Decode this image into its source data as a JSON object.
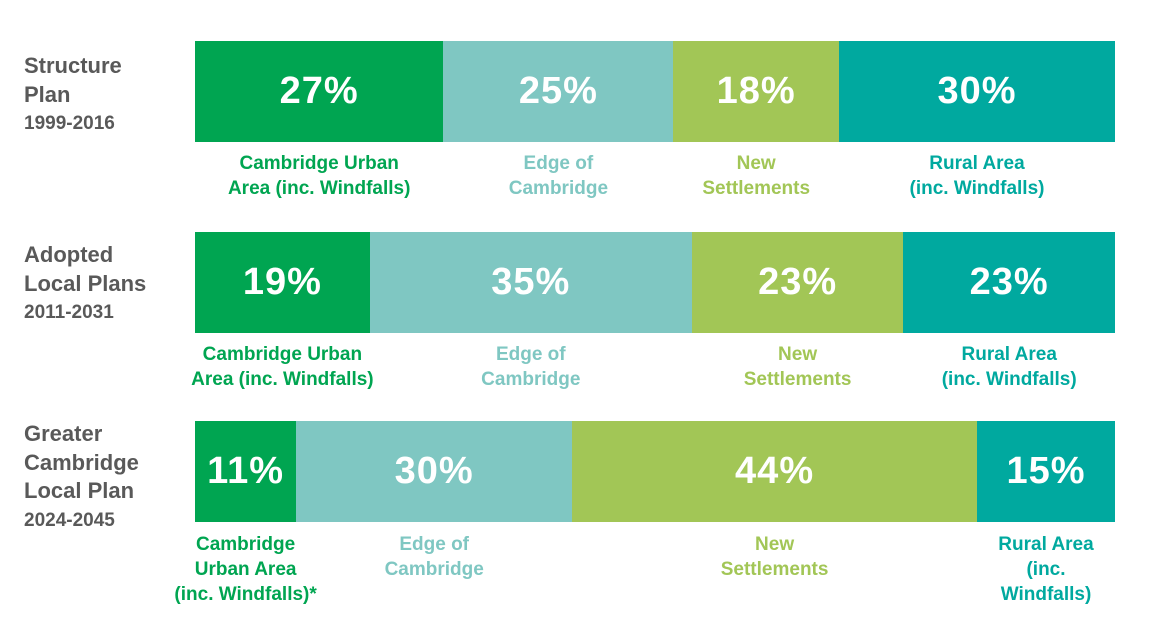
{
  "colors": {
    "cambridge_urban_area": "#00A551",
    "edge_of_cambridge": "#7FC7C2",
    "new_settlements": "#A2C656",
    "rural_area": "#00A99F",
    "row_label": "#595959"
  },
  "chart_data": {
    "type": "bar",
    "stacked": true,
    "orientation": "horizontal",
    "percent": true,
    "rows": [
      {
        "label": "Structure\nPlan",
        "period": "1999-2016",
        "segments": [
          {
            "key": "cambridge_urban_area",
            "value": 27,
            "value_label": "27%",
            "category_label": "Cambridge Urban\nArea (inc. Windfalls)"
          },
          {
            "key": "edge_of_cambridge",
            "value": 25,
            "value_label": "25%",
            "category_label": "Edge of\nCambridge"
          },
          {
            "key": "new_settlements",
            "value": 18,
            "value_label": "18%",
            "category_label": "New\nSettlements"
          },
          {
            "key": "rural_area",
            "value": 30,
            "value_label": "30%",
            "category_label": "Rural Area\n(inc. Windfalls)"
          }
        ]
      },
      {
        "label": "Adopted\nLocal Plans",
        "period": "2011-2031",
        "segments": [
          {
            "key": "cambridge_urban_area",
            "value": 19,
            "value_label": "19%",
            "category_label": "Cambridge Urban\nArea (inc. Windfalls)"
          },
          {
            "key": "edge_of_cambridge",
            "value": 35,
            "value_label": "35%",
            "category_label": "Edge of\nCambridge"
          },
          {
            "key": "new_settlements",
            "value": 23,
            "value_label": "23%",
            "category_label": "New\nSettlements"
          },
          {
            "key": "rural_area",
            "value": 23,
            "value_label": "23%",
            "category_label": "Rural Area\n(inc. Windfalls)"
          }
        ]
      },
      {
        "label": "Greater\nCambridge\nLocal Plan",
        "period": "2024-2045",
        "segments": [
          {
            "key": "cambridge_urban_area",
            "value": 11,
            "value_label": "11%",
            "category_label": "Cambridge\nUrban Area\n(inc. Windfalls)*"
          },
          {
            "key": "edge_of_cambridge",
            "value": 30,
            "value_label": "30%",
            "category_label": "Edge of\nCambridge"
          },
          {
            "key": "new_settlements",
            "value": 44,
            "value_label": "44%",
            "category_label": "New\nSettlements"
          },
          {
            "key": "rural_area",
            "value": 15,
            "value_label": "15%",
            "category_label": "Rural Area\n(inc. Windfalls)"
          }
        ]
      }
    ]
  }
}
